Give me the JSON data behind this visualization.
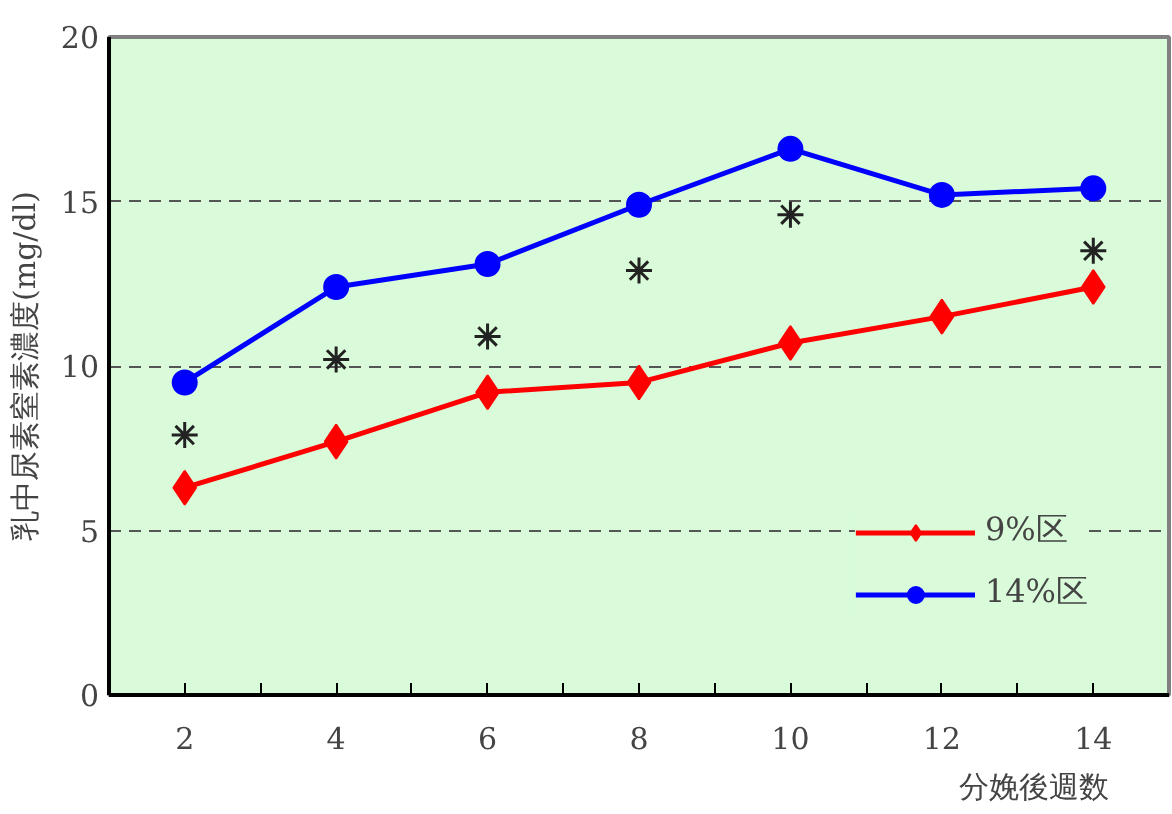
{
  "chart_data": {
    "type": "line",
    "xlabel": "分娩後週数",
    "ylabel": "乳中尿素窒素濃度(mg/dl)",
    "x": [
      2,
      4,
      6,
      8,
      10,
      12,
      14
    ],
    "series": [
      {
        "name": "9%区",
        "color": "#ff0000",
        "marker": "diamond",
        "values": [
          6.3,
          7.7,
          9.2,
          9.5,
          10.7,
          11.5,
          12.4
        ]
      },
      {
        "name": "14%区",
        "color": "#0000ff",
        "marker": "circle",
        "values": [
          9.5,
          12.4,
          13.1,
          14.9,
          16.6,
          15.2,
          15.4
        ]
      },
      {
        "type": "scatter",
        "color": "#222222",
        "marker": "cross",
        "x": [
          2,
          4,
          6,
          8,
          10,
          14
        ],
        "values": [
          7.9,
          10.2,
          10.9,
          12.9,
          14.6,
          13.5
        ]
      }
    ],
    "xlim": [
      1,
      15
    ],
    "ylim": [
      0,
      20
    ],
    "xticks": [
      2,
      {
        "value": 3,
        "label": null
      },
      4,
      {
        "value": 5,
        "label": null
      },
      6,
      {
        "value": 7,
        "label": null
      },
      8,
      {
        "value": 9,
        "label": null
      },
      10,
      {
        "value": 11,
        "label": null
      },
      12,
      {
        "value": 13,
        "label": null
      },
      14
    ],
    "yticks": [
      0,
      5,
      10,
      15,
      20
    ],
    "grid": "y",
    "legend": "bottom right",
    "line_style": "solid"
  }
}
